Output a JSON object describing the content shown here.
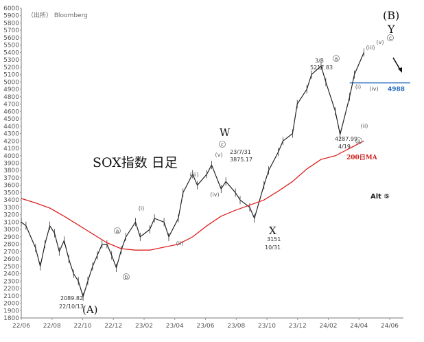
{
  "chart_data": {
    "type": "line",
    "title": "SOX指数 日足",
    "source": "（出所） Bloomberg",
    "ylim": [
      1800,
      6000
    ],
    "yticks": [
      1800,
      1900,
      2000,
      2100,
      2200,
      2300,
      2400,
      2500,
      2600,
      2700,
      2800,
      2900,
      3000,
      3100,
      3200,
      3300,
      3400,
      3500,
      3600,
      3700,
      3800,
      3900,
      4000,
      4100,
      4200,
      4300,
      4400,
      4500,
      4600,
      4700,
      4800,
      4900,
      5000,
      5100,
      5200,
      5300,
      5400,
      5500,
      5600,
      5700,
      5800,
      5900,
      6000
    ],
    "xticks": [
      "22/06",
      "22/08",
      "22/10",
      "22/12",
      "23/02",
      "23/04",
      "23/06",
      "23/08",
      "23/10",
      "23/12",
      "24/02",
      "24/04",
      "24/06"
    ],
    "grid": false,
    "series": [
      {
        "name": "SOX",
        "color": "#222222",
        "points": [
          [
            "22/06",
            3100
          ],
          [
            "22/06a",
            3050
          ],
          [
            "22/07",
            2750
          ],
          [
            "22/07a",
            2500
          ],
          [
            "22/07b",
            2800
          ],
          [
            "22/08",
            3050
          ],
          [
            "22/08a",
            2950
          ],
          [
            "22/08b",
            2700
          ],
          [
            "22/09",
            2850
          ],
          [
            "22/09a",
            2600
          ],
          [
            "22/09b",
            2400
          ],
          [
            "22/10",
            2300
          ],
          [
            "22/10a",
            2090
          ],
          [
            "22/10b",
            2300
          ],
          [
            "22/11",
            2500
          ],
          [
            "22/11a",
            2650
          ],
          [
            "22/11b",
            2800
          ],
          [
            "22/12",
            2800
          ],
          [
            "22/12a",
            2650
          ],
          [
            "22/12b",
            2480
          ],
          [
            "23/01",
            2720
          ],
          [
            "23/01a",
            2900
          ],
          [
            "23/02",
            3100
          ],
          [
            "23/02a",
            2900
          ],
          [
            "23/03",
            3000
          ],
          [
            "23/03a",
            3150
          ],
          [
            "23/04",
            3100
          ],
          [
            "23/04a",
            2900
          ],
          [
            "23/05",
            3150
          ],
          [
            "23/05a",
            3500
          ],
          [
            "23/06",
            3750
          ],
          [
            "23/06a",
            3600
          ],
          [
            "23/07",
            3750
          ],
          [
            "23/07a",
            3875
          ],
          [
            "23/08",
            3550
          ],
          [
            "23/08a",
            3650
          ],
          [
            "23/09",
            3500
          ],
          [
            "23/09a",
            3400
          ],
          [
            "23/10",
            3300
          ],
          [
            "23/10a",
            3151
          ],
          [
            "23/11",
            3600
          ],
          [
            "23/11a",
            3800
          ],
          [
            "23/12",
            4050
          ],
          [
            "23/12a",
            4200
          ],
          [
            "24/01",
            4300
          ],
          [
            "24/01a",
            4700
          ],
          [
            "24/02",
            4900
          ],
          [
            "24/02a",
            5100
          ],
          [
            "24/03",
            5218
          ],
          [
            "24/03a",
            5000
          ],
          [
            "24/04",
            4600
          ],
          [
            "24/04a",
            4288
          ],
          [
            "24/05",
            4800
          ],
          [
            "24/05a",
            5100
          ],
          [
            "24/06",
            5400
          ]
        ]
      },
      {
        "name": "200日MA",
        "color": "#e02020",
        "points": [
          [
            "22/06",
            3420
          ],
          [
            "22/07",
            3360
          ],
          [
            "22/08",
            3290
          ],
          [
            "22/09",
            3180
          ],
          [
            "22/10",
            3060
          ],
          [
            "22/11",
            2940
          ],
          [
            "22/12",
            2820
          ],
          [
            "23/01",
            2740
          ],
          [
            "23/02",
            2720
          ],
          [
            "23/03",
            2720
          ],
          [
            "23/04",
            2760
          ],
          [
            "23/05",
            2800
          ],
          [
            "23/06",
            2900
          ],
          [
            "23/07",
            3050
          ],
          [
            "23/08",
            3180
          ],
          [
            "23/09",
            3260
          ],
          [
            "23/10",
            3330
          ],
          [
            "23/11",
            3400
          ],
          [
            "23/12",
            3520
          ],
          [
            "24/01",
            3650
          ],
          [
            "24/02",
            3820
          ],
          [
            "24/03",
            3950
          ],
          [
            "24/04",
            4000
          ],
          [
            "24/05",
            4100
          ],
          [
            "24/06",
            4200
          ]
        ]
      }
    ],
    "reference_level": {
      "value": 4988,
      "label": "4988",
      "color": "#2a6fbf"
    },
    "annotations": [
      {
        "text": "2089.82",
        "x": "22/10",
        "y": 2089.82
      },
      {
        "text": "22/10/13",
        "x": "22/10",
        "y": 2089.82
      },
      {
        "text": "23/7/31",
        "x": "23/07",
        "y": 3875.17
      },
      {
        "text": "3875.17",
        "x": "23/07",
        "y": 3875.17
      },
      {
        "text": "3151",
        "x": "23/10",
        "y": 3151
      },
      {
        "text": "10/31",
        "x": "23/10",
        "y": 3151
      },
      {
        "text": "3/8",
        "x": "24/03",
        "y": 5217.83
      },
      {
        "text": "5217.83",
        "x": "24/03",
        "y": 5217.83
      },
      {
        "text": "4287.99",
        "x": "24/04",
        "y": 4287.99
      },
      {
        "text": "4/19",
        "x": "24/04",
        "y": 4287.99
      }
    ],
    "wave_labels": [
      "(A)",
      "W",
      "X",
      "(B)",
      "Y"
    ],
    "small_labels": [
      "a",
      "b",
      "c",
      "(i)",
      "(ii)",
      "(iii)",
      "(iv)",
      "(v)"
    ],
    "alt_label": "Alt ⑤",
    "ma_label": "200日MA"
  }
}
